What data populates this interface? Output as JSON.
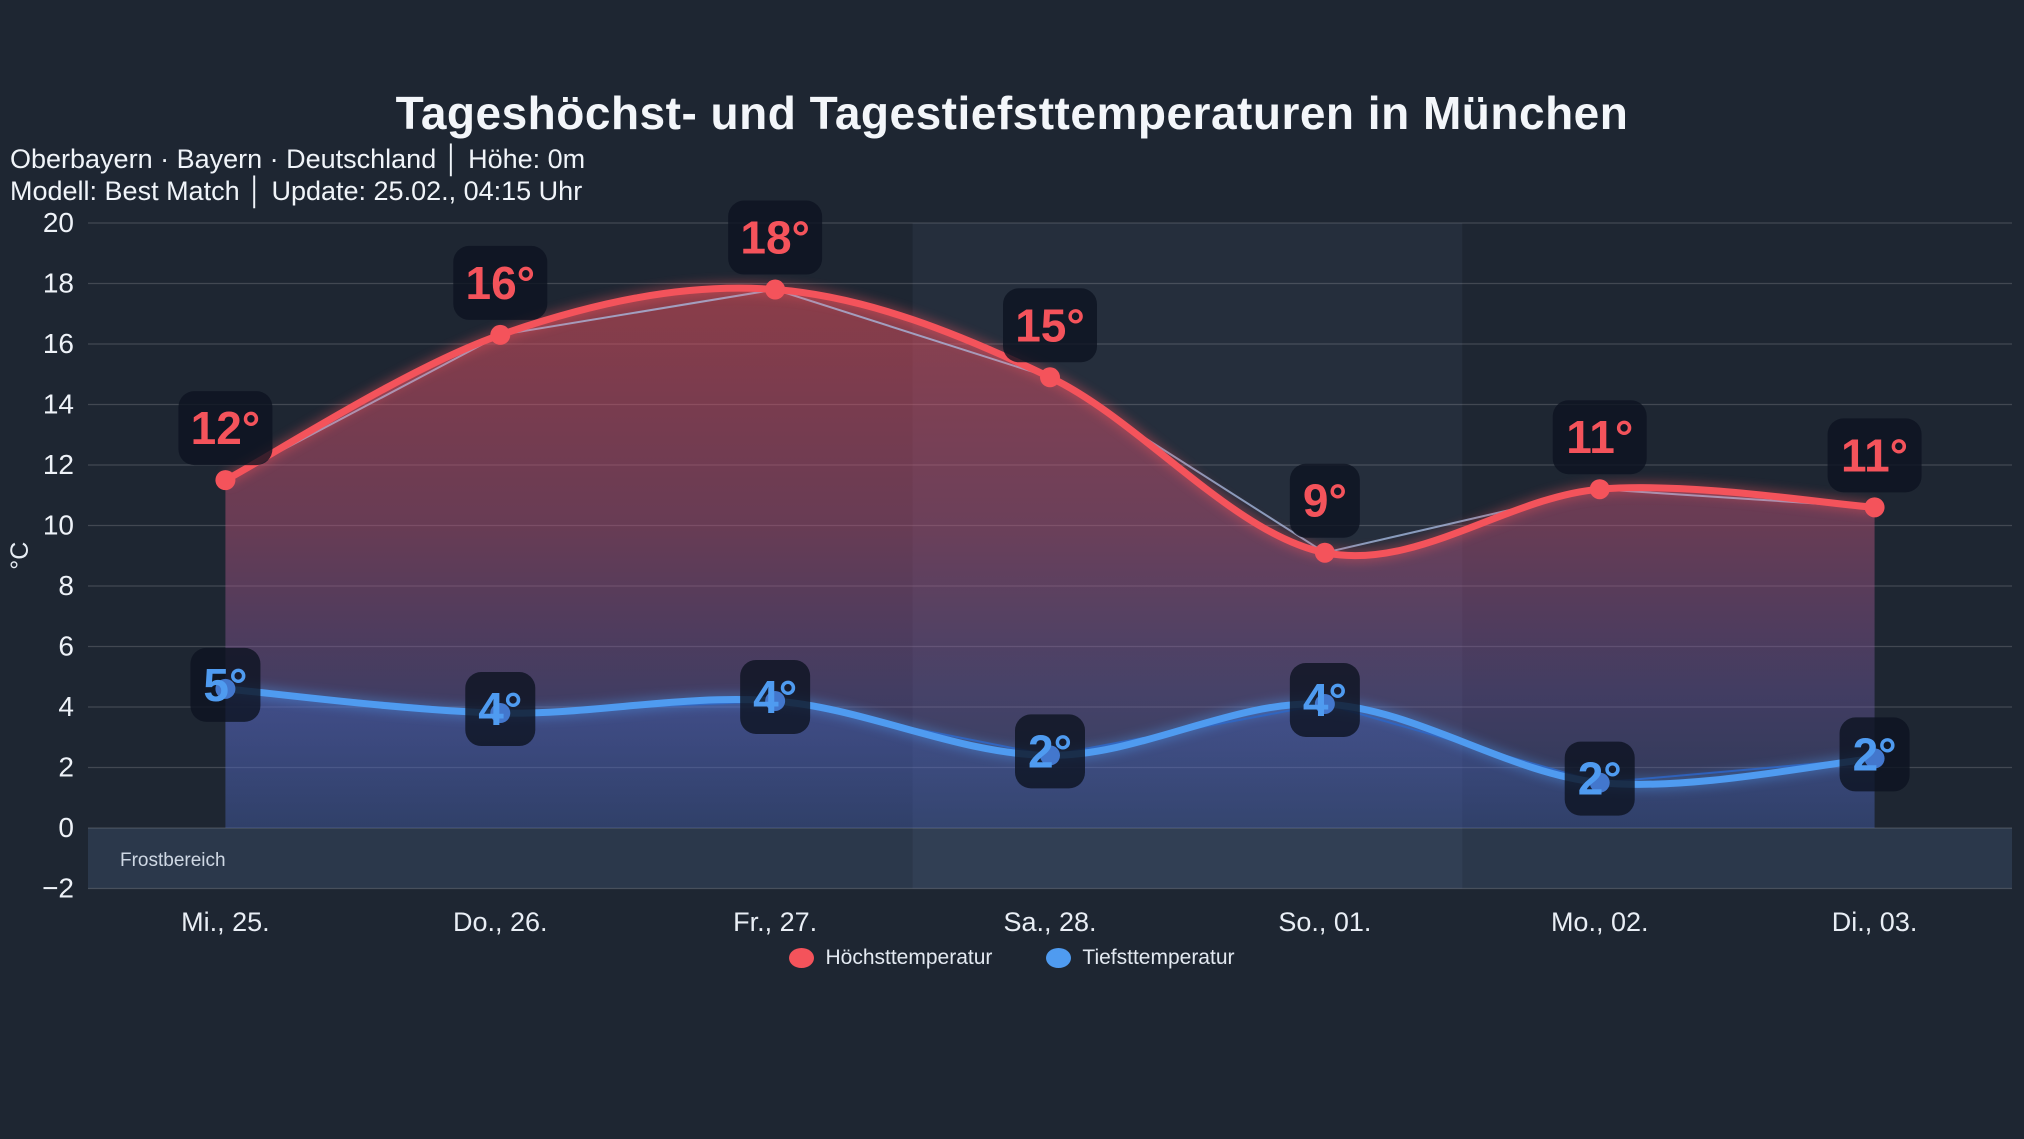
{
  "header": {
    "title": "Tageshöchst- und Tagestiefsttemperaturen in München",
    "subtitle_line1": "Oberbayern · Bayern · Deutschland │ Höhe: 0m",
    "subtitle_line2": "Modell: Best Match │ Update: 25.02., 04:15 Uhr"
  },
  "chart_data": {
    "type": "line",
    "title": "Tageshöchst- und Tagestiefsttemperaturen in München",
    "categories": [
      "Mi., 25.",
      "Do., 26.",
      "Fr., 27.",
      "Sa., 28.",
      "So., 01.",
      "Mo., 02.",
      "Di., 03."
    ],
    "series": [
      {
        "name": "Höchsttemperatur",
        "color": "#f4535b",
        "values": [
          11.5,
          16.3,
          17.8,
          14.9,
          9.1,
          11.2,
          10.6
        ],
        "point_labels": [
          "12°",
          "16°",
          "18°",
          "15°",
          "9°",
          "11°",
          "11°"
        ]
      },
      {
        "name": "Tiefsttemperatur",
        "color": "#4f9bf0",
        "values": [
          4.6,
          3.8,
          4.2,
          2.4,
          4.1,
          1.5,
          2.3
        ],
        "point_labels": [
          "5°",
          "4°",
          "4°",
          "2°",
          "4°",
          "2°",
          "2°"
        ]
      }
    ],
    "ylabel": "°C",
    "ylim": [
      -2,
      20
    ],
    "ytick_step": 2,
    "grid": true,
    "legend_position": "bottom",
    "frost_band": {
      "label": "Frostbereich",
      "from": 0,
      "to": -2
    },
    "highlighted_columns": [
      "Sa., 28.",
      "So., 01."
    ]
  },
  "colors": {
    "background": "#1e2632",
    "grid": "rgba(255,255,255,0.16)",
    "weekend_band": "rgba(173,203,255,0.05)",
    "frost_band": "rgba(125,170,235,0.14)",
    "label_box": "rgba(13,19,32,0.80)",
    "high": "#f4535b",
    "low": "#4f9bf0"
  }
}
